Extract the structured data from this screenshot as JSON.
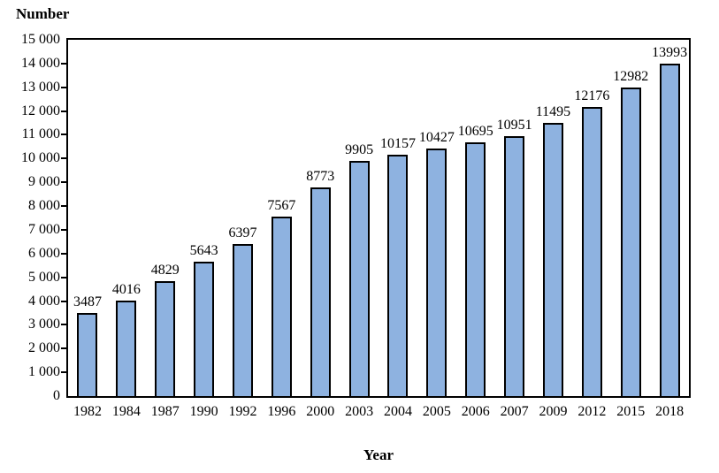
{
  "chart_data": {
    "type": "bar",
    "title": "Number",
    "xlabel": "Year",
    "categories": [
      "1982",
      "1984",
      "1987",
      "1990",
      "1992",
      "1996",
      "2000",
      "2003",
      "2004",
      "2005",
      "2006",
      "2007",
      "2009",
      "2012",
      "2015",
      "2018"
    ],
    "values": [
      3487,
      4016,
      4829,
      5643,
      6397,
      7567,
      8773,
      9905,
      10157,
      10427,
      10695,
      10951,
      11495,
      12176,
      12982,
      13993
    ],
    "bar_value_labels": [
      "3487",
      "4016",
      "4829",
      "5643",
      "6397",
      "7567",
      "8773",
      "9905",
      "10157",
      "10427",
      "10695",
      "10951",
      "11495",
      "12176",
      "12982",
      "13993"
    ],
    "ylim": [
      0,
      15000
    ],
    "ytick_step": 1000,
    "yticks": [
      {
        "value": 0,
        "label": "0"
      },
      {
        "value": 1000,
        "label": "1 000"
      },
      {
        "value": 2000,
        "label": "2 000"
      },
      {
        "value": 3000,
        "label": "3 000"
      },
      {
        "value": 4000,
        "label": "4 000"
      },
      {
        "value": 5000,
        "label": "5 000"
      },
      {
        "value": 6000,
        "label": "6 000"
      },
      {
        "value": 7000,
        "label": "7 000"
      },
      {
        "value": 8000,
        "label": "8 000"
      },
      {
        "value": 9000,
        "label": "9 000"
      },
      {
        "value": 10000,
        "label": "10 000"
      },
      {
        "value": 11000,
        "label": "11 000"
      },
      {
        "value": 12000,
        "label": "12 000"
      },
      {
        "value": 13000,
        "label": "13 000"
      },
      {
        "value": 14000,
        "label": "14 000"
      },
      {
        "value": 15000,
        "label": "15 000"
      }
    ],
    "grid": false,
    "legend": null,
    "colors": {
      "bar_fill": "#8EB2E0",
      "bar_border": "#000000",
      "axis": "#000000",
      "text": "#000000",
      "background": "#ffffff"
    }
  }
}
